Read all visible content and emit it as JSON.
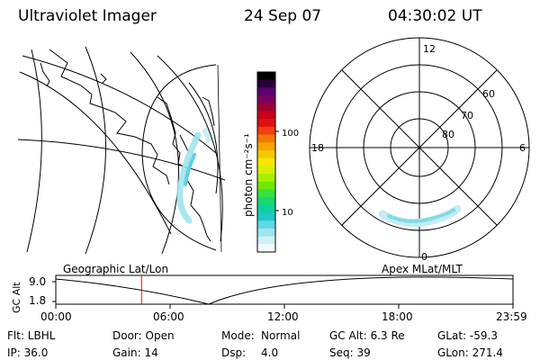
{
  "header": {
    "title": "Ultraviolet Imager",
    "date": "24 Sep 07",
    "time": "04:30:02 UT"
  },
  "colorbar": {
    "label": "photon cm⁻²s⁻¹",
    "ticks": [
      "100",
      "10"
    ],
    "colors": [
      "#000000",
      "#2a0038",
      "#5a0070",
      "#7a0060",
      "#a00030",
      "#c8001e",
      "#e01010",
      "#f04010",
      "#f07a00",
      "#f5a400",
      "#f5c800",
      "#f8e800",
      "#d8f000",
      "#a8f000",
      "#70e800",
      "#38e040",
      "#18d870",
      "#10d0a0",
      "#20c8c8",
      "#60d8e0",
      "#a0e4ec",
      "#d0f0f6",
      "#f4fbfd"
    ]
  },
  "polar": {
    "mlt_labels": [
      "12",
      "18",
      "6",
      "0"
    ],
    "lat_labels": [
      "60",
      "70",
      "80"
    ]
  },
  "orbit": {
    "left_label": "Geographic Lat/Lon",
    "right_label": "Apex MLat/MLT",
    "y_label": "GC Alt",
    "y_ticks": [
      "9.0",
      "1.8"
    ],
    "x_ticks": [
      "00:00",
      "06:00",
      "12:00",
      "18:00",
      "23:59"
    ],
    "current_time_fraction": 0.1875,
    "marker_color": "#ff0000"
  },
  "status": {
    "flt": "Flt: LBHL",
    "ip": "IP: 36.0",
    "door": "Door: Open",
    "gain": "Gain: 14",
    "mode_label": "Mode:",
    "mode_value": "Normal",
    "dsp_label": "Dsp:",
    "dsp_value": "4.0",
    "gc_alt": "GC Alt: 6.3 Re",
    "seq": "Seq: 39",
    "glat": "GLat: -59.3",
    "glon": "GLon: 271.4"
  }
}
